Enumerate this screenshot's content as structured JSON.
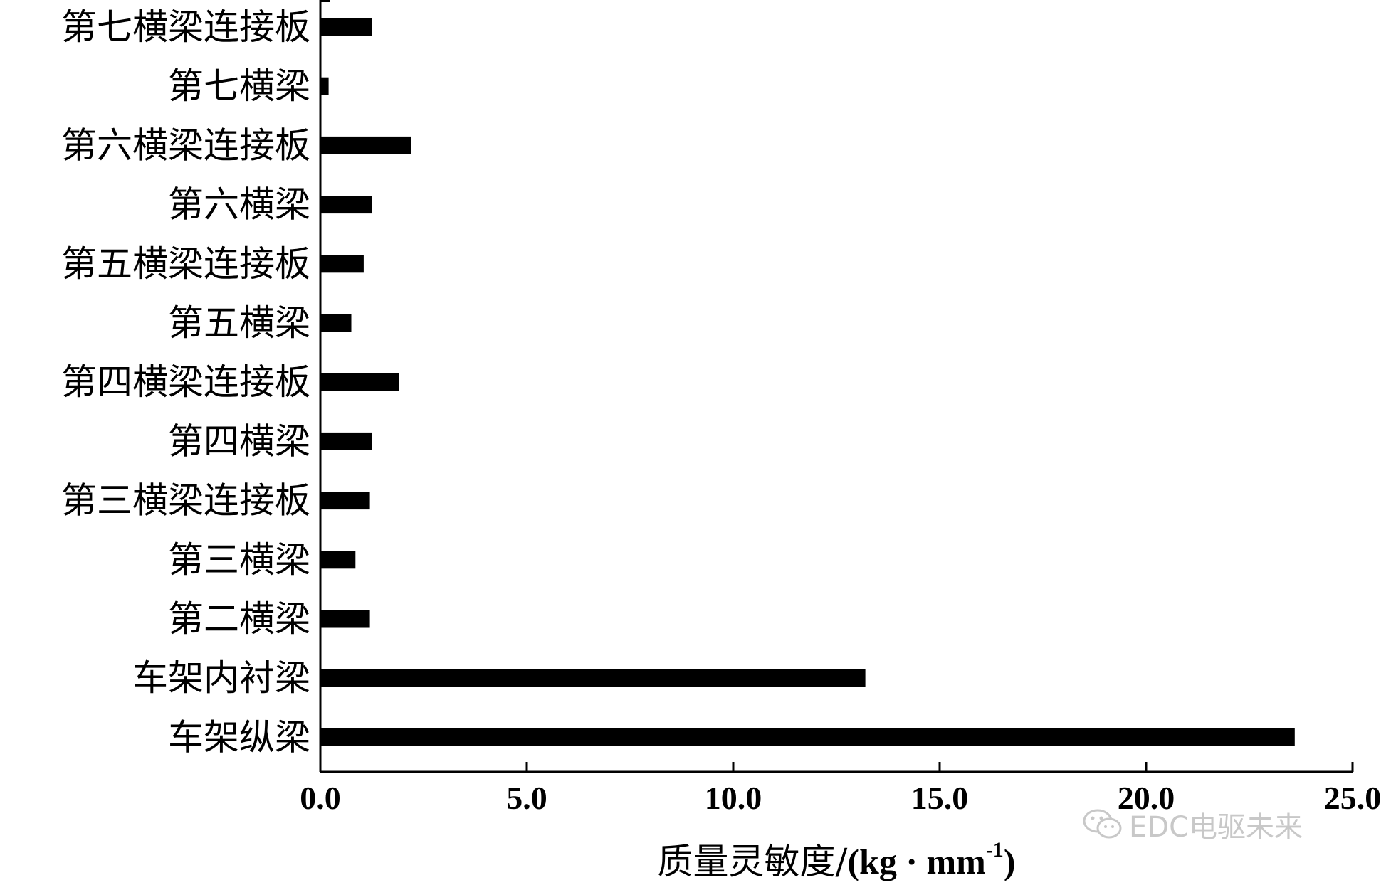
{
  "chart_data": {
    "type": "bar",
    "orientation": "horizontal",
    "categories": [
      "第七横梁连接板",
      "第七横梁",
      "第六横梁连接板",
      "第六横梁",
      "第五横梁连接板",
      "第五横梁",
      "第四横梁连接板",
      "第四横梁",
      "第三横梁连接板",
      "第三横梁",
      "第二横梁",
      "车架内衬梁",
      "车架纵梁"
    ],
    "values": [
      1.25,
      0.2,
      2.2,
      1.25,
      1.05,
      0.75,
      1.9,
      1.25,
      1.2,
      0.85,
      1.2,
      13.2,
      23.6
    ],
    "xlabel_prefix": "质量灵敏度/",
    "xlabel_unit": "(kg · mm",
    "xlabel_sup": "-1",
    "xlabel_close": ")",
    "xlim": [
      0,
      25
    ],
    "xticks": [
      "0.0",
      "5.0",
      "10.0",
      "15.0",
      "20.0",
      "25.0"
    ],
    "xtick_values": [
      0,
      5,
      10,
      15,
      20,
      25
    ],
    "grid": false,
    "bar_color": "#000000"
  },
  "watermark": {
    "text": "EDC电驱未来",
    "icon": "wechat-icon",
    "color": "#c8c8c8"
  }
}
